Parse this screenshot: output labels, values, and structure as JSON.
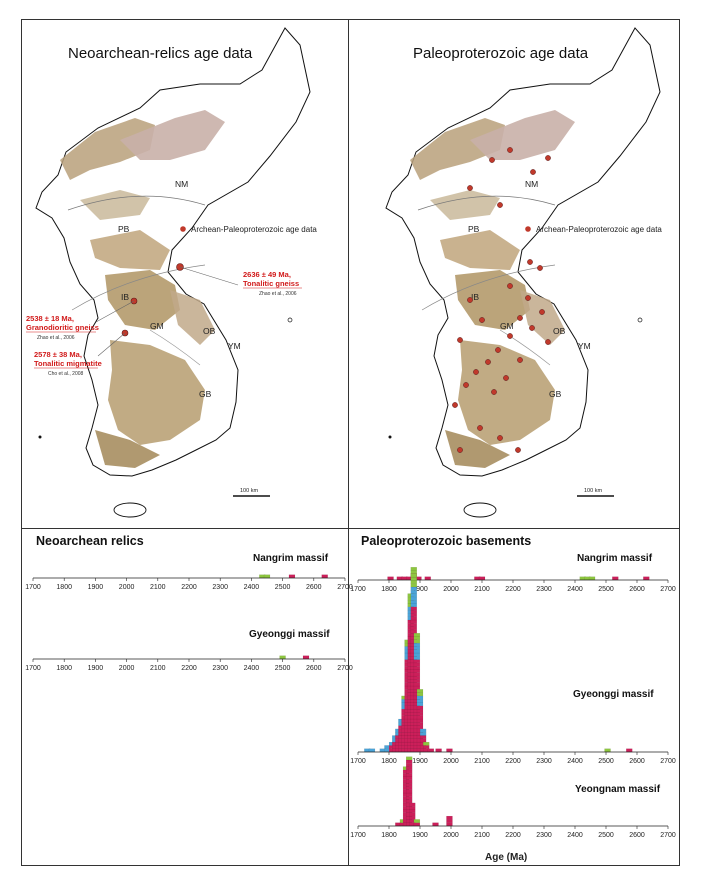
{
  "maps": {
    "left_title": "Neoarchean-relics age data",
    "right_title": "Paleoproterozoic age data",
    "legend_label": "Archean-Paleoproterozoic age data",
    "scale_label": "100 km",
    "region_labels": [
      "NM",
      "PB",
      "IB",
      "GM",
      "OB",
      "YM",
      "GB"
    ],
    "annotations": [
      {
        "age": "2636 ± 49 Ma,",
        "rock": "Tonalitic gneiss",
        "ref": "Zhao et al., 2006"
      },
      {
        "age": "2538 ± 18 Ma,",
        "rock": "Granodioritic gneiss",
        "ref": "Zhao et al., 2006"
      },
      {
        "age": "2578 ± 38 Ma,",
        "rock": "Tonalitic migmatite",
        "ref": "Cho et al., 2008"
      }
    ]
  },
  "histograms": {
    "left_title": "Neoarchean relics",
    "right_title": "Paleoproterozoic basements",
    "xlabel": "Age (Ma)",
    "ticks": [
      1700,
      1800,
      1900,
      2000,
      2100,
      2200,
      2300,
      2400,
      2500,
      2600,
      2700
    ],
    "colors": {
      "green": "#8dc63f",
      "magenta": "#cc1f5a",
      "blue": "#4aa3d8"
    }
  },
  "chart_data": [
    {
      "type": "bar",
      "panel": "Neoarchean relics",
      "title": "Nangrim massif",
      "xlim": [
        1700,
        2700
      ],
      "bars": [
        {
          "x": 2435,
          "stack": [
            "green"
          ]
        },
        {
          "x": 2450,
          "stack": [
            "green"
          ]
        },
        {
          "x": 2530,
          "stack": [
            "magenta"
          ]
        },
        {
          "x": 2635,
          "stack": [
            "magenta"
          ]
        }
      ]
    },
    {
      "type": "bar",
      "panel": "Neoarchean relics",
      "title": "Gyeonggi massif",
      "xlim": [
        1700,
        2700
      ],
      "bars": [
        {
          "x": 2500,
          "stack": [
            "green"
          ]
        },
        {
          "x": 2575,
          "stack": [
            "magenta"
          ]
        }
      ]
    },
    {
      "type": "bar",
      "panel": "Paleoproterozoic basements",
      "title": "Nangrim massif",
      "xlim": [
        1700,
        2700
      ],
      "bars": [
        {
          "x": 1805,
          "stack": [
            "magenta"
          ]
        },
        {
          "x": 1835,
          "stack": [
            "magenta"
          ]
        },
        {
          "x": 1850,
          "stack": [
            "magenta"
          ]
        },
        {
          "x": 1865,
          "stack": [
            "magenta"
          ]
        },
        {
          "x": 1880,
          "stack": [
            "magenta",
            "magenta"
          ]
        },
        {
          "x": 1895,
          "stack": [
            "magenta"
          ]
        },
        {
          "x": 1925,
          "stack": [
            "magenta"
          ]
        },
        {
          "x": 2085,
          "stack": [
            "magenta"
          ]
        },
        {
          "x": 2100,
          "stack": [
            "magenta"
          ]
        },
        {
          "x": 2425,
          "stack": [
            "green"
          ]
        },
        {
          "x": 2440,
          "stack": [
            "green"
          ]
        },
        {
          "x": 2455,
          "stack": [
            "green"
          ]
        },
        {
          "x": 2530,
          "stack": [
            "magenta"
          ]
        },
        {
          "x": 2630,
          "stack": [
            "magenta"
          ]
        }
      ]
    },
    {
      "type": "bar",
      "panel": "Paleoproterozoic basements",
      "title": "Gyeonggi massif",
      "xlim": [
        1700,
        2700
      ],
      "bars": [
        {
          "x": 1730,
          "stack": [
            "blue"
          ]
        },
        {
          "x": 1745,
          "stack": [
            "blue"
          ]
        },
        {
          "x": 1780,
          "stack": [
            "blue"
          ]
        },
        {
          "x": 1795,
          "stack": [
            "blue",
            "blue"
          ]
        },
        {
          "x": 1810,
          "stack": [
            "magenta",
            "magenta",
            "blue"
          ]
        },
        {
          "x": 1820,
          "stack": [
            "magenta",
            "magenta",
            "magenta",
            "blue",
            "blue"
          ]
        },
        {
          "x": 1830,
          "stack": [
            "magenta",
            "magenta",
            "magenta",
            "magenta",
            "magenta",
            "blue",
            "blue"
          ]
        },
        {
          "x": 1840,
          "stack": [
            "magenta",
            "magenta",
            "magenta",
            "magenta",
            "magenta",
            "magenta",
            "magenta",
            "magenta",
            "blue",
            "blue"
          ]
        },
        {
          "x": 1850,
          "stack": [
            "magenta",
            "magenta",
            "magenta",
            "magenta",
            "magenta",
            "magenta",
            "magenta",
            "magenta",
            "magenta",
            "magenta",
            "magenta",
            "magenta",
            "magenta",
            "blue",
            "blue",
            "blue",
            "green"
          ]
        },
        {
          "x": 1860,
          "stack": [
            "magenta",
            "magenta",
            "magenta",
            "magenta",
            "magenta",
            "magenta",
            "magenta",
            "magenta",
            "magenta",
            "magenta",
            "magenta",
            "magenta",
            "magenta",
            "magenta",
            "magenta",
            "magenta",
            "magenta",
            "magenta",
            "magenta",
            "magenta",
            "magenta",
            "magenta",
            "magenta",
            "magenta",
            "magenta",
            "magenta",
            "magenta",
            "magenta",
            "blue",
            "blue",
            "blue",
            "blue",
            "green",
            "green"
          ]
        },
        {
          "x": 1870,
          "stack": [
            "magenta",
            "magenta",
            "magenta",
            "magenta",
            "magenta",
            "magenta",
            "magenta",
            "magenta",
            "magenta",
            "magenta",
            "magenta",
            "magenta",
            "magenta",
            "magenta",
            "magenta",
            "magenta",
            "magenta",
            "magenta",
            "magenta",
            "magenta",
            "magenta",
            "magenta",
            "magenta",
            "magenta",
            "magenta",
            "magenta",
            "magenta",
            "magenta",
            "magenta",
            "magenta",
            "magenta",
            "magenta",
            "magenta",
            "magenta",
            "magenta",
            "magenta",
            "magenta",
            "magenta",
            "magenta",
            "magenta",
            "blue",
            "blue",
            "blue",
            "blue",
            "green",
            "green",
            "green",
            "green"
          ]
        },
        {
          "x": 1880,
          "stack": [
            "magenta",
            "magenta",
            "magenta",
            "magenta",
            "magenta",
            "magenta",
            "magenta",
            "magenta",
            "magenta",
            "magenta",
            "magenta",
            "magenta",
            "magenta",
            "magenta",
            "magenta",
            "magenta",
            "magenta",
            "magenta",
            "magenta",
            "magenta",
            "magenta",
            "magenta",
            "magenta",
            "magenta",
            "magenta",
            "magenta",
            "magenta",
            "magenta",
            "magenta",
            "magenta",
            "magenta",
            "magenta",
            "magenta",
            "magenta",
            "magenta",
            "magenta",
            "magenta",
            "magenta",
            "magenta",
            "magenta",
            "magenta",
            "magenta",
            "magenta",
            "magenta",
            "blue",
            "blue",
            "blue",
            "blue",
            "blue",
            "blue",
            "green",
            "green",
            "green",
            "green",
            "green",
            "green"
          ]
        },
        {
          "x": 1890,
          "stack": [
            "magenta",
            "magenta",
            "magenta",
            "magenta",
            "magenta",
            "magenta",
            "magenta",
            "magenta",
            "magenta",
            "magenta",
            "magenta",
            "magenta",
            "magenta",
            "magenta",
            "magenta",
            "magenta",
            "magenta",
            "magenta",
            "magenta",
            "magenta",
            "magenta",
            "magenta",
            "magenta",
            "magenta",
            "magenta",
            "magenta",
            "magenta",
            "magenta",
            "blue",
            "blue",
            "blue",
            "blue",
            "blue",
            "green",
            "green",
            "green"
          ]
        },
        {
          "x": 1900,
          "stack": [
            "magenta",
            "magenta",
            "magenta",
            "magenta",
            "magenta",
            "magenta",
            "magenta",
            "magenta",
            "magenta",
            "magenta",
            "magenta",
            "magenta",
            "magenta",
            "magenta",
            "blue",
            "blue",
            "blue",
            "green",
            "green"
          ]
        },
        {
          "x": 1910,
          "stack": [
            "magenta",
            "magenta",
            "magenta",
            "magenta",
            "magenta",
            "blue",
            "blue"
          ]
        },
        {
          "x": 1920,
          "stack": [
            "magenta",
            "magenta",
            "green"
          ]
        },
        {
          "x": 1935,
          "stack": [
            "magenta"
          ]
        },
        {
          "x": 1960,
          "stack": [
            "magenta"
          ]
        },
        {
          "x": 1995,
          "stack": [
            "magenta"
          ]
        },
        {
          "x": 2505,
          "stack": [
            "green"
          ]
        },
        {
          "x": 2575,
          "stack": [
            "magenta"
          ]
        }
      ]
    },
    {
      "type": "bar",
      "panel": "Paleoproterozoic basements",
      "title": "Yeongnam massif",
      "xlim": [
        1700,
        2700
      ],
      "bars": [
        {
          "x": 1830,
          "stack": [
            "magenta"
          ]
        },
        {
          "x": 1845,
          "stack": [
            "magenta",
            "green"
          ]
        },
        {
          "x": 1855,
          "stack": [
            "magenta",
            "magenta",
            "magenta",
            "magenta",
            "magenta",
            "magenta",
            "magenta",
            "magenta",
            "magenta",
            "magenta",
            "magenta",
            "magenta",
            "magenta",
            "magenta",
            "magenta",
            "magenta",
            "magenta",
            "green"
          ]
        },
        {
          "x": 1865,
          "stack": [
            "magenta",
            "magenta",
            "magenta",
            "magenta",
            "magenta",
            "magenta",
            "magenta",
            "magenta",
            "magenta",
            "magenta",
            "magenta",
            "magenta",
            "magenta",
            "magenta",
            "magenta",
            "magenta",
            "magenta",
            "magenta",
            "magenta",
            "magenta",
            "green"
          ]
        },
        {
          "x": 1875,
          "stack": [
            "magenta",
            "magenta",
            "magenta",
            "magenta",
            "magenta",
            "magenta",
            "magenta"
          ]
        },
        {
          "x": 1890,
          "stack": [
            "magenta",
            "green"
          ]
        },
        {
          "x": 1950,
          "stack": [
            "magenta"
          ]
        },
        {
          "x": 1995,
          "stack": [
            "magenta",
            "magenta",
            "magenta"
          ]
        }
      ]
    }
  ]
}
